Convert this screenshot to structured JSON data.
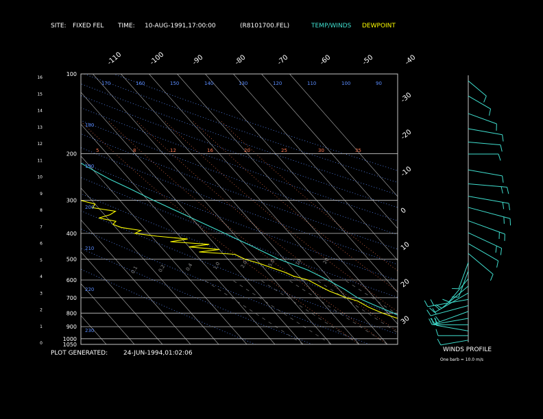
{
  "header": {
    "site_label": "SITE:",
    "site_value": "FIXED FEL",
    "time_label": "TIME:",
    "time_value": "10-AUG-1991,17:00:00",
    "file": "(R8101700.FEL)",
    "legend_temp": "TEMP/WINDS",
    "legend_dew": "DEWPOINT"
  },
  "footer": {
    "generated_label": "PLOT GENERATED:",
    "generated_value": "24-JUN-1994,01:02:06",
    "winds_title": "WINDS PROFILE",
    "barb_note": "One barb = 10.0 m/s"
  },
  "colors": {
    "background": "#000000",
    "temp": "#40e0d0",
    "dew": "#ffff00",
    "isobar": "#c8c8c8",
    "isotherm": "#b4b4b4",
    "dry_adiabat": "#5a8cff",
    "moist_adiabat": "#ff7850",
    "frame": "#c8c8c8"
  },
  "chart_data": {
    "type": "line",
    "title": "",
    "xlabel": "",
    "ylabel": "",
    "pressure_levels": [
      {
        "p": 100,
        "label": "100"
      },
      {
        "p": 200,
        "label": "200"
      },
      {
        "p": 300,
        "label": "300"
      },
      {
        "p": 400,
        "label": "400"
      },
      {
        "p": 500,
        "label": "500"
      },
      {
        "p": 600,
        "label": "600"
      },
      {
        "p": 700,
        "label": "700"
      },
      {
        "p": 800,
        "label": "800"
      },
      {
        "p": 900,
        "label": "900"
      },
      {
        "p": 1000,
        "label": "1000"
      },
      {
        "p": 1050,
        "label": "1050"
      }
    ],
    "height_ticks": [
      "0",
      "1",
      "2",
      "3",
      "4",
      "5",
      "6",
      "7",
      "8",
      "9",
      "10",
      "11",
      "12",
      "13",
      "14",
      "15",
      "16"
    ],
    "top_temp_labels": [
      "-110",
      "-100",
      "-90",
      "-80",
      "-70",
      "-60",
      "-50",
      "-40"
    ],
    "right_temp_labels": [
      "-30",
      "-20",
      "-10",
      "0",
      "10",
      "20",
      "30"
    ],
    "dry_adiabat_labels": [
      "90",
      "100",
      "110",
      "120",
      "130",
      "140",
      "150",
      "160",
      "170",
      "180",
      "190",
      "200",
      "210",
      "220",
      "230"
    ],
    "mixing_ratio_labels": [
      "0.1",
      "0.2",
      "0.4",
      "1.0",
      "2.0",
      "5.0",
      "10",
      "20"
    ],
    "theta_e_labels": [
      "5",
      "8",
      "12",
      "16",
      "20",
      "25",
      "30",
      "35"
    ],
    "series": [
      {
        "name": "TEMP/WINDS",
        "points": [
          [
            1040,
            30
          ],
          [
            1000,
            29
          ],
          [
            950,
            24
          ],
          [
            900,
            18
          ],
          [
            850,
            15
          ],
          [
            800,
            12
          ],
          [
            750,
            8
          ],
          [
            700,
            4
          ],
          [
            650,
            2
          ],
          [
            600,
            -1
          ],
          [
            550,
            -5
          ],
          [
            520,
            -9
          ],
          [
            500,
            -12
          ],
          [
            450,
            -17
          ],
          [
            400,
            -23
          ],
          [
            350,
            -30
          ],
          [
            300,
            -38
          ],
          [
            270,
            -43
          ],
          [
            250,
            -47
          ],
          [
            225,
            -51
          ],
          [
            200,
            -55
          ],
          [
            185,
            -56
          ],
          [
            170,
            -56
          ],
          [
            155,
            -55
          ],
          [
            140,
            -55
          ],
          [
            125,
            -54
          ],
          [
            115,
            -53
          ],
          [
            105,
            -52
          ],
          [
            100,
            -50
          ]
        ]
      },
      {
        "name": "DEWPOINT",
        "points": [
          [
            1040,
            26
          ],
          [
            1000,
            25
          ],
          [
            960,
            18
          ],
          [
            930,
            17
          ],
          [
            900,
            16
          ],
          [
            860,
            14
          ],
          [
            820,
            10
          ],
          [
            800,
            8
          ],
          [
            760,
            5
          ],
          [
            720,
            3
          ],
          [
            700,
            0
          ],
          [
            660,
            -4
          ],
          [
            630,
            -6
          ],
          [
            600,
            -8
          ],
          [
            580,
            -12
          ],
          [
            560,
            -14
          ],
          [
            540,
            -17
          ],
          [
            520,
            -20
          ],
          [
            500,
            -24
          ],
          [
            480,
            -26
          ],
          [
            470,
            -38
          ],
          [
            460,
            -30
          ],
          [
            450,
            -40
          ],
          [
            440,
            -32
          ],
          [
            430,
            -45
          ],
          [
            420,
            -38
          ],
          [
            410,
            -48
          ],
          [
            400,
            -55
          ],
          [
            390,
            -52
          ],
          [
            380,
            -58
          ],
          [
            370,
            -60
          ],
          [
            360,
            -58
          ],
          [
            350,
            -63
          ],
          [
            340,
            -58
          ],
          [
            330,
            -55
          ],
          [
            320,
            -62
          ],
          [
            310,
            -60
          ],
          [
            300,
            -64
          ],
          [
            290,
            -70
          ],
          [
            280,
            -66
          ],
          [
            270,
            -72
          ],
          [
            260,
            -70
          ],
          [
            250,
            -76
          ],
          [
            240,
            -74
          ],
          [
            230,
            -80
          ],
          [
            220,
            -82
          ],
          [
            210,
            -80
          ],
          [
            200,
            -85
          ]
        ]
      }
    ],
    "winds": [
      {
        "p": 1030,
        "speed": 8,
        "dir": 260
      },
      {
        "p": 990,
        "speed": 10,
        "dir": 270
      },
      {
        "p": 950,
        "speed": 12,
        "dir": 280
      },
      {
        "p": 900,
        "speed": 14,
        "dir": 270
      },
      {
        "p": 850,
        "speed": 16,
        "dir": 260
      },
      {
        "p": 800,
        "speed": 15,
        "dir": 250
      },
      {
        "p": 760,
        "speed": 18,
        "dir": 255
      },
      {
        "p": 720,
        "speed": 20,
        "dir": 260
      },
      {
        "p": 680,
        "speed": 18,
        "dir": 240
      },
      {
        "p": 640,
        "speed": 14,
        "dir": 230
      },
      {
        "p": 600,
        "speed": 10,
        "dir": 220
      },
      {
        "p": 560,
        "speed": 8,
        "dir": 200
      },
      {
        "p": 520,
        "speed": 8,
        "dir": 200
      },
      {
        "p": 480,
        "speed": 12,
        "dir": 130
      },
      {
        "p": 440,
        "speed": 14,
        "dir": 120
      },
      {
        "p": 400,
        "speed": 16,
        "dir": 115
      },
      {
        "p": 360,
        "speed": 18,
        "dir": 110
      },
      {
        "p": 320,
        "speed": 22,
        "dir": 105
      },
      {
        "p": 290,
        "speed": 20,
        "dir": 100
      },
      {
        "p": 260,
        "speed": 18,
        "dir": 95
      },
      {
        "p": 230,
        "speed": 14,
        "dir": 100
      },
      {
        "p": 200,
        "speed": 10,
        "dir": 90
      },
      {
        "p": 180,
        "speed": 12,
        "dir": 95
      },
      {
        "p": 160,
        "speed": 14,
        "dir": 100
      },
      {
        "p": 140,
        "speed": 10,
        "dir": 110
      },
      {
        "p": 120,
        "speed": 6,
        "dir": 120
      },
      {
        "p": 105,
        "speed": 4,
        "dir": 130
      }
    ]
  }
}
